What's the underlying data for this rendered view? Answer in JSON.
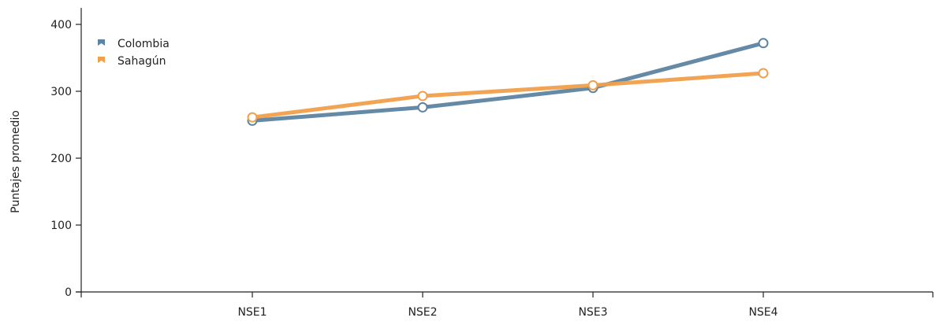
{
  "chart_data": {
    "type": "line",
    "categories": [
      "NSE1",
      "NSE2",
      "NSE3",
      "NSE4"
    ],
    "series": [
      {
        "name": "Colombia",
        "values": [
          256,
          276,
          305,
          372
        ],
        "color": "#5d84a0"
      },
      {
        "name": "Sahagún",
        "values": [
          261,
          293,
          309,
          327
        ],
        "color": "#f0a04b"
      }
    ],
    "title": "",
    "xlabel": "",
    "ylabel": "Puntajes promedio",
    "ylim": [
      0,
      420
    ],
    "yticks": [
      0,
      100,
      200,
      300,
      400
    ],
    "grid": false,
    "legend": "top-left"
  }
}
